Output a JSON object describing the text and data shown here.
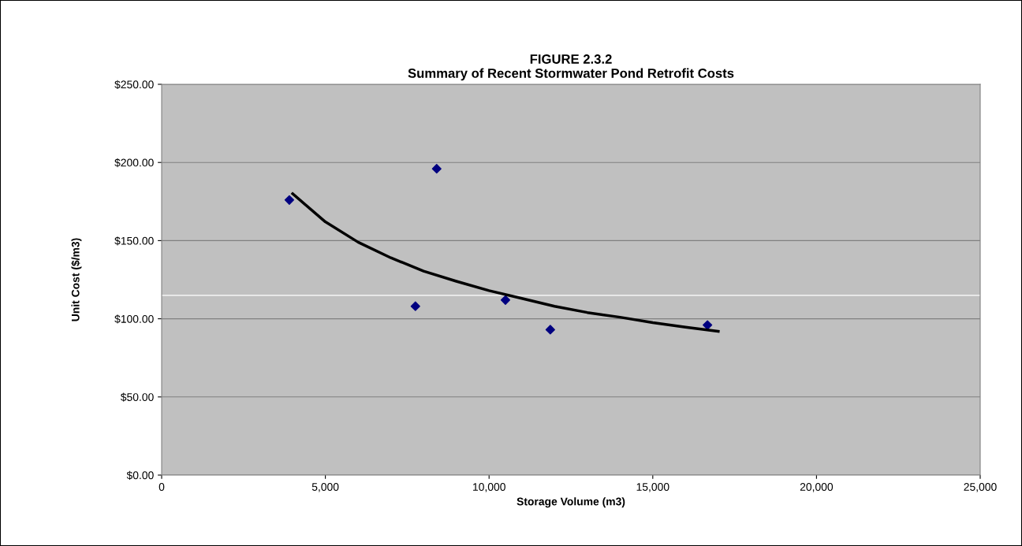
{
  "chart_data": {
    "type": "scatter",
    "title": "FIGURE 2.3.2\nSummary of Recent Stormwater Pond Retrofit Costs",
    "xlabel": "Storage Volume (m3)",
    "ylabel": "Unit Cost ($/m3)",
    "marker": "diamond",
    "grid": "y",
    "legend": false,
    "xlim": [
      0,
      25000
    ],
    "xticks": [
      {
        "value": 0,
        "label": "0"
      },
      {
        "value": 5000,
        "label": "5,000"
      },
      {
        "value": 10000,
        "label": "10,000"
      },
      {
        "value": 15000,
        "label": "15,000"
      },
      {
        "value": 20000,
        "label": "20,000"
      },
      {
        "value": 25000,
        "label": "25,000"
      }
    ],
    "ylim": [
      0,
      250
    ],
    "yticks": [
      {
        "value": 0,
        "label": "$0.00"
      },
      {
        "value": 50,
        "label": "$50.00"
      },
      {
        "value": 100,
        "label": "$100.00"
      },
      {
        "value": 150,
        "label": "$150.00"
      },
      {
        "value": 200,
        "label": "$200.00"
      },
      {
        "value": 250,
        "label": "$250.00"
      }
    ],
    "ref_lines": [
      {
        "axis": "y",
        "value": 115,
        "color": "#ffffff"
      }
    ],
    "series": [
      {
        "color": "#000080",
        "x": [
          3900,
          8400,
          7750,
          10500,
          11870,
          16670
        ],
        "values": [
          176,
          196,
          108,
          112,
          93,
          96
        ]
      },
      {
        "type": "line",
        "color": "#000000",
        "marker": "none",
        "x": [
          4000,
          5000,
          6000,
          7000,
          8000,
          9000,
          10000,
          11000,
          12000,
          13000,
          14000,
          15000,
          16000,
          17000
        ],
        "values": [
          180,
          162,
          149,
          139,
          130.5,
          124,
          118,
          113,
          108,
          104,
          101,
          97.5,
          94.6,
          92
        ]
      }
    ]
  }
}
